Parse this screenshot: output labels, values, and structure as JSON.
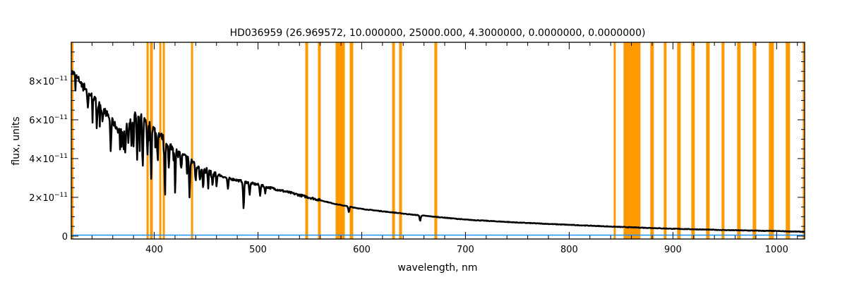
{
  "chart_data": {
    "type": "line",
    "title": "HD036959   (26.969572, 10.000000, 25000.000, 4.3000000, 0.0000000, 0.0000000)",
    "xlabel": "wavelength, nm",
    "ylabel": "flux, units",
    "xlim": [
      320,
      1027
    ],
    "ylim": [
      -1.5e-12,
      1e-10
    ],
    "grid": false,
    "x_ticks": [
      {
        "value": 400,
        "label": "400"
      },
      {
        "value": 500,
        "label": "500"
      },
      {
        "value": 600,
        "label": "600"
      },
      {
        "value": 700,
        "label": "700"
      },
      {
        "value": 800,
        "label": "800"
      },
      {
        "value": 900,
        "label": "900"
      },
      {
        "value": 1000,
        "label": "1000"
      }
    ],
    "y_ticks": [
      {
        "value": 0,
        "label": "0",
        "exp": ""
      },
      {
        "value": 2e-11,
        "label": "2×10",
        "exp": "−11"
      },
      {
        "value": 4e-11,
        "label": "4×10",
        "exp": "−11"
      },
      {
        "value": 6e-11,
        "label": "6×10",
        "exp": "−11"
      },
      {
        "value": 8e-11,
        "label": "8×10",
        "exp": "−11"
      }
    ],
    "colors": {
      "spectrum": "#000000",
      "error": "#1e90ff",
      "mask": "#ff9900"
    },
    "masked_bands_nm": [
      [
        320,
        322
      ],
      [
        392.5,
        394.6
      ],
      [
        395.9,
        398.6
      ],
      [
        404.8,
        406.8
      ],
      [
        408.2,
        410.2
      ],
      [
        435.4,
        437.4
      ],
      [
        545.6,
        548.3
      ],
      [
        557.8,
        560.5
      ],
      [
        574.8,
        583.7
      ],
      [
        588.4,
        591.8
      ],
      [
        629.3,
        632
      ],
      [
        636,
        638.8
      ],
      [
        670,
        672.8
      ],
      [
        842.9,
        844.9
      ],
      [
        852.4,
        868.7
      ],
      [
        878.2,
        881.6
      ],
      [
        891.2,
        893.9
      ],
      [
        904.1,
        907.5
      ],
      [
        917.7,
        921.1
      ],
      [
        932,
        935.4
      ],
      [
        946.9,
        949.7
      ],
      [
        961.9,
        965.3
      ],
      [
        976.9,
        980.3
      ],
      [
        992.5,
        997.3
      ],
      [
        1008.8,
        1012.9
      ],
      [
        1025.2,
        1027
      ]
    ],
    "series": [
      {
        "name": "spectrum",
        "unit_scale": 1e-11,
        "continuum": [
          [
            320,
            8.5
          ],
          [
            330,
            7.9
          ],
          [
            340,
            7.2
          ],
          [
            350,
            6.6
          ],
          [
            360,
            5.9
          ],
          [
            365,
            5.5
          ],
          [
            370,
            5.3
          ],
          [
            378,
            6.3
          ],
          [
            385,
            6.4
          ],
          [
            392,
            6.0
          ],
          [
            400,
            5.5
          ],
          [
            410,
            5.0
          ],
          [
            420,
            4.4
          ],
          [
            435,
            3.9
          ],
          [
            450,
            3.4
          ],
          [
            470,
            3.0
          ],
          [
            500,
            2.65
          ],
          [
            530,
            2.25
          ],
          [
            575,
            1.65
          ],
          [
            600,
            1.4
          ],
          [
            650,
            1.1
          ],
          [
            700,
            0.85
          ],
          [
            750,
            0.7
          ],
          [
            800,
            0.58
          ],
          [
            850,
            0.47
          ],
          [
            900,
            0.38
          ],
          [
            950,
            0.31
          ],
          [
            1000,
            0.26
          ],
          [
            1027,
            0.22
          ]
        ],
        "absorption_lines": [
          [
            336,
            0.9
          ],
          [
            345,
            0.8
          ],
          [
            350,
            0.6
          ],
          [
            358,
            1.6
          ],
          [
            372,
            1.3
          ],
          [
            375,
            1.0
          ],
          [
            378,
            1.5
          ],
          [
            380,
            1.8
          ],
          [
            383.5,
            2.5
          ],
          [
            386,
            1.5
          ],
          [
            388.9,
            2.7
          ],
          [
            393.4,
            1.8
          ],
          [
            397,
            2.6
          ],
          [
            403,
            1.2
          ],
          [
            410.2,
            2.6
          ],
          [
            414,
            1.3
          ],
          [
            420,
            1.0
          ],
          [
            426,
            0.8
          ],
          [
            434,
            1.9
          ],
          [
            440,
            0.9
          ],
          [
            444,
            0.8
          ],
          [
            447,
            1.1
          ],
          [
            452,
            0.8
          ],
          [
            456,
            0.7
          ],
          [
            460,
            0.6
          ],
          [
            471,
            0.6
          ],
          [
            486.1,
            1.4
          ],
          [
            492,
            0.6
          ],
          [
            502,
            0.5
          ],
          [
            507,
            0.3
          ],
          [
            587.6,
            0.3
          ],
          [
            656.3,
            0.3
          ]
        ]
      },
      {
        "name": "error",
        "unit_scale": 1e-11,
        "level": 0.05
      }
    ]
  }
}
